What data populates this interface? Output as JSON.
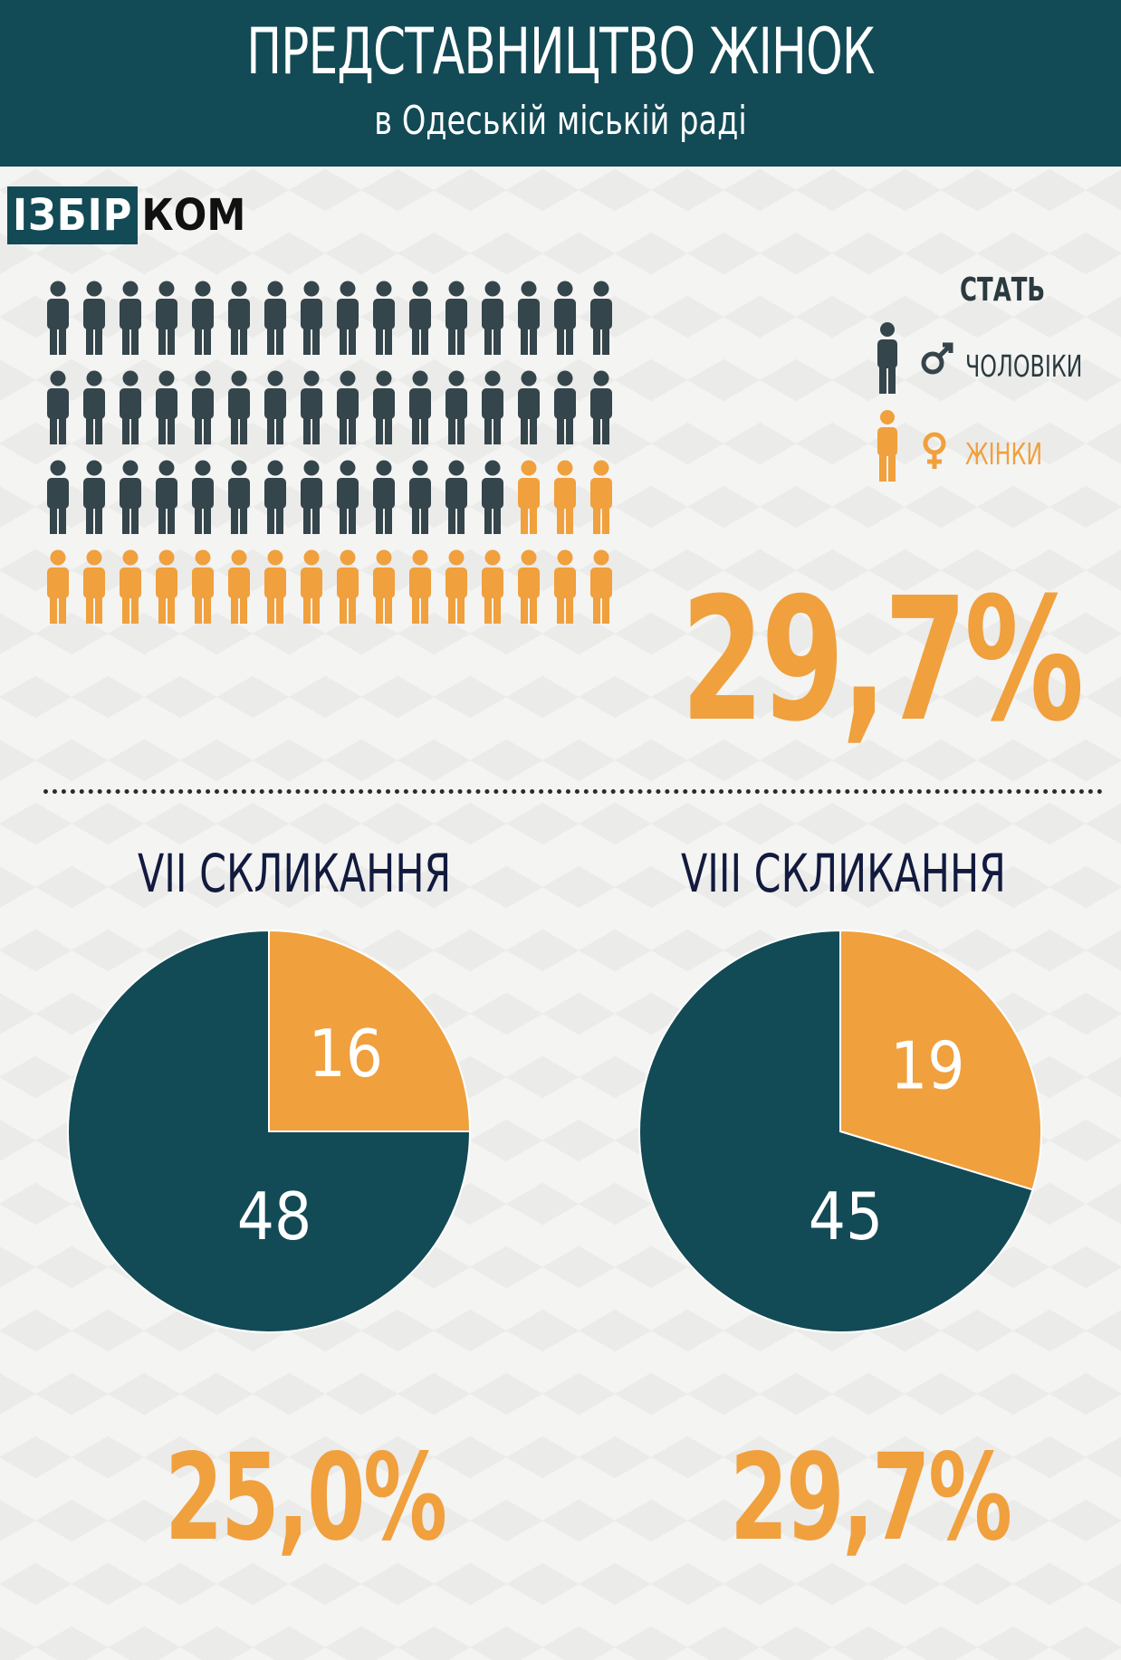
{
  "header": {
    "title": "ПРЕДСТАВНИЦТВО ЖІНОК",
    "subtitle": "в Одеській міській раді"
  },
  "logo": {
    "part_a": "ІЗБІР",
    "part_b": "КОМ"
  },
  "legend": {
    "title": "СТАТЬ",
    "items": [
      {
        "label": "ЧОЛОВІКИ",
        "color": "#34454b",
        "icon": "male-symbol-icon"
      },
      {
        "label": "ЖІНКИ",
        "color": "#f0a03d",
        "icon": "female-symbol-icon"
      }
    ]
  },
  "summary": {
    "percent": "29,7%"
  },
  "colors": {
    "men": "#34454b",
    "women": "#f0a03d",
    "pie_men": "#124a55",
    "pie_women": "#f0a03d",
    "header": "#124a55"
  },
  "chart_data": [
    {
      "type": "pictograph",
      "categories": [
        "ЧОЛОВІКИ",
        "ЖІНКИ"
      ],
      "values": [
        45,
        19
      ],
      "total": 64
    },
    {
      "type": "pie",
      "title": "VII СКЛИКАННЯ",
      "labels": [
        "ЖІНКИ",
        "ЧОЛОВІКИ"
      ],
      "values": [
        16,
        48
      ],
      "percent_women": "25,0%"
    },
    {
      "type": "pie",
      "title": "VIII СКЛИКАННЯ",
      "labels": [
        "ЖІНКИ",
        "ЧОЛОВІКИ"
      ],
      "values": [
        19,
        45
      ],
      "percent_women": "29,7%"
    }
  ]
}
